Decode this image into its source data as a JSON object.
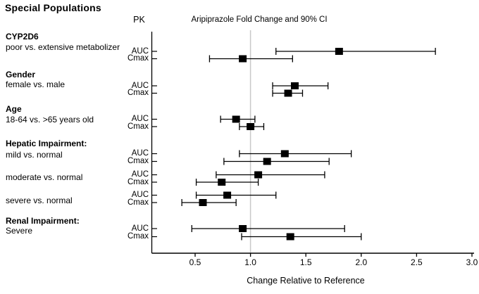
{
  "page": {
    "title": "Special Populations"
  },
  "chart_data": {
    "type": "forest",
    "title": "Aripiprazole Fold Change and 90% CI",
    "pk_header": "PK",
    "xlabel": "Change Relative to Reference",
    "x_ticks": [
      0.5,
      1.0,
      1.5,
      2.0,
      2.5,
      3.0
    ],
    "x_tick_labels": [
      "0.5",
      "1.0",
      "1.5",
      "2.0",
      "2.5",
      "3.0"
    ],
    "xlim": [
      0.35,
      3.05
    ],
    "reference_line": 1.0,
    "grid": false,
    "legend": "none",
    "colors": {
      "marker": "#000000",
      "ci_line": "#000000",
      "reference_line": "#c8c8c8"
    },
    "groups": [
      {
        "label": "CYP2D6",
        "sublabel": "poor vs. extensive metabolizer",
        "rows": [
          {
            "pk": "AUC",
            "value": 1.8,
            "lo": 1.23,
            "hi": 2.67
          },
          {
            "pk": "Cmax",
            "value": 0.93,
            "lo": 0.63,
            "hi": 1.38
          }
        ]
      },
      {
        "label": "Gender",
        "sublabel": "female vs. male",
        "rows": [
          {
            "pk": "AUC",
            "value": 1.4,
            "lo": 1.2,
            "hi": 1.7
          },
          {
            "pk": "Cmax",
            "value": 1.34,
            "lo": 1.2,
            "hi": 1.47
          }
        ]
      },
      {
        "label": "Age",
        "sublabel": "18-64 vs. >65 years old",
        "rows": [
          {
            "pk": "AUC",
            "value": 0.87,
            "lo": 0.73,
            "hi": 1.04
          },
          {
            "pk": "Cmax",
            "value": 1.0,
            "lo": 0.9,
            "hi": 1.12
          }
        ]
      },
      {
        "label": "Hepatic Impairment:",
        "sublabel": "mild vs. normal",
        "rows": [
          {
            "pk": "AUC",
            "value": 1.31,
            "lo": 0.9,
            "hi": 1.91
          },
          {
            "pk": "Cmax",
            "value": 1.15,
            "lo": 0.76,
            "hi": 1.71
          }
        ]
      },
      {
        "label": "",
        "sublabel": "moderate vs. normal",
        "rows": [
          {
            "pk": "AUC",
            "value": 1.07,
            "lo": 0.69,
            "hi": 1.67
          },
          {
            "pk": "Cmax",
            "value": 0.74,
            "lo": 0.51,
            "hi": 1.07
          }
        ]
      },
      {
        "label": "",
        "sublabel": "severe vs. normal",
        "rows": [
          {
            "pk": "AUC",
            "value": 0.79,
            "lo": 0.51,
            "hi": 1.23
          },
          {
            "pk": "Cmax",
            "value": 0.57,
            "lo": 0.38,
            "hi": 0.87
          }
        ]
      },
      {
        "label": "Renal Impairment:",
        "sublabel": "Severe",
        "rows": [
          {
            "pk": "AUC",
            "value": 0.93,
            "lo": 0.47,
            "hi": 1.85
          },
          {
            "pk": "Cmax",
            "value": 1.36,
            "lo": 0.92,
            "hi": 2.0
          }
        ]
      }
    ]
  }
}
